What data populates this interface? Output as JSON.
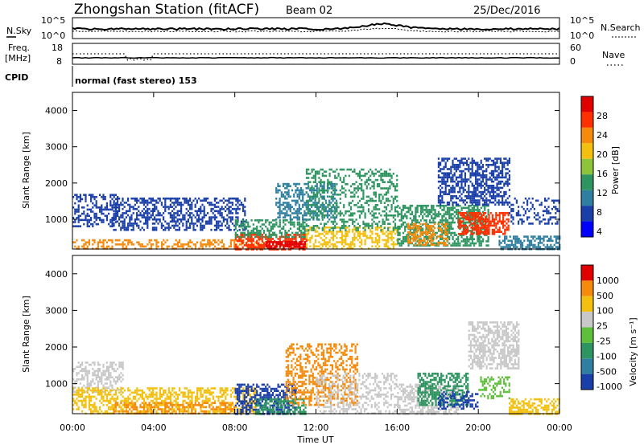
{
  "header": {
    "station": "Zhongshan Station (fitACF)",
    "beam": "Beam 02",
    "date": "25/Dec/2016"
  },
  "top_panels": {
    "nsky_label": "N.Sky",
    "nsearch_label": "N.Search",
    "freq_label_line1": "Freq.",
    "freq_label_line2": "[MHz]",
    "nave_label": "Nave",
    "cpid_label": "CPID",
    "noise_ticks_left": [
      "10^5",
      "10^0"
    ],
    "noise_ticks_right": [
      "10^5",
      "10^0"
    ],
    "freq_ticks": [
      "18",
      "8"
    ],
    "nave_ticks": [
      "60",
      "0"
    ],
    "cpid_text": "normal (fast stereo) 153"
  },
  "chart_data": [
    {
      "type": "heatmap",
      "name": "power",
      "ylabel": "Slant Range [km]",
      "xlabel": "",
      "xlim": [
        0,
        24
      ],
      "ylim": [
        180,
        4500
      ],
      "yticks": [
        "4000",
        "3000",
        "2000",
        "1000"
      ],
      "colorbar_label": "Power [dB]",
      "colorbar_ticks": [
        "28",
        "24",
        "20",
        "16",
        "12",
        "8",
        "4"
      ],
      "colors": [
        "#0000ff",
        "#1a3fa8",
        "#2f7fa0",
        "#2e9560",
        "#8cc43a",
        "#f3c00f",
        "#f58a0c",
        "#ff3000",
        "#e00000"
      ],
      "blobs": [
        {
          "t0": 0.0,
          "t1": 2.2,
          "r0": 800,
          "r1": 1700,
          "c": 1,
          "d": 0.45
        },
        {
          "t0": 0.0,
          "t1": 9.5,
          "r0": 180,
          "r1": 450,
          "c": 6,
          "d": 0.45
        },
        {
          "t0": 2.0,
          "t1": 8.5,
          "r0": 700,
          "r1": 1600,
          "c": 1,
          "d": 0.5
        },
        {
          "t0": 8.0,
          "t1": 11.5,
          "r0": 180,
          "r1": 600,
          "c": 7,
          "d": 0.7
        },
        {
          "t0": 8.0,
          "t1": 11.5,
          "r0": 500,
          "r1": 1000,
          "c": 3,
          "d": 0.55
        },
        {
          "t0": 9.5,
          "t1": 11.5,
          "r0": 180,
          "r1": 400,
          "c": 8,
          "d": 0.7
        },
        {
          "t0": 10.0,
          "t1": 13.0,
          "r0": 1000,
          "r1": 2000,
          "c": 2,
          "d": 0.5
        },
        {
          "t0": 11.5,
          "t1": 16.0,
          "r0": 180,
          "r1": 800,
          "c": 5,
          "d": 0.45
        },
        {
          "t0": 11.5,
          "t1": 16.0,
          "r0": 700,
          "r1": 2400,
          "c": 3,
          "d": 0.35
        },
        {
          "t0": 16.0,
          "t1": 20.5,
          "r0": 300,
          "r1": 1400,
          "c": 3,
          "d": 0.6
        },
        {
          "t0": 16.5,
          "t1": 18.5,
          "r0": 300,
          "r1": 900,
          "c": 6,
          "d": 0.45
        },
        {
          "t0": 19.0,
          "t1": 21.5,
          "r0": 600,
          "r1": 1200,
          "c": 7,
          "d": 0.65
        },
        {
          "t0": 18.0,
          "t1": 21.5,
          "r0": 1400,
          "r1": 2700,
          "c": 1,
          "d": 0.6
        },
        {
          "t0": 21.0,
          "t1": 24.0,
          "r0": 180,
          "r1": 550,
          "c": 2,
          "d": 0.55
        },
        {
          "t0": 21.5,
          "t1": 24.0,
          "r0": 900,
          "r1": 1600,
          "c": 1,
          "d": 0.3
        }
      ]
    },
    {
      "type": "heatmap",
      "name": "velocity",
      "ylabel": "Slant Range [km]",
      "xlabel": "Time UT",
      "xlim": [
        0,
        24
      ],
      "ylim": [
        180,
        4500
      ],
      "xticks": [
        "00:00",
        "04:00",
        "08:00",
        "12:00",
        "16:00",
        "20:00",
        "00:00"
      ],
      "yticks": [
        "4000",
        "3000",
        "2000",
        "1000"
      ],
      "colorbar_label": "Velocity [m s⁻¹]",
      "colorbar_ticks": [
        "1000",
        "500",
        "100",
        "25",
        "-25",
        "-100",
        "-500",
        "-1000"
      ],
      "colors": [
        "#1a3fa8",
        "#2f7fa0",
        "#2e9560",
        "#5fbf3a",
        "#c8c8c8",
        "#f3c00f",
        "#f58a0c",
        "#e00000"
      ],
      "blobs": [
        {
          "t0": 0.0,
          "t1": 2.5,
          "r0": 800,
          "r1": 1600,
          "c": 4,
          "d": 0.5
        },
        {
          "t0": 0.0,
          "t1": 9.0,
          "r0": 180,
          "r1": 900,
          "c": 5,
          "d": 0.5
        },
        {
          "t0": 2.0,
          "t1": 8.0,
          "r0": 180,
          "r1": 500,
          "c": 6,
          "d": 0.45
        },
        {
          "t0": 8.0,
          "t1": 11.0,
          "r0": 180,
          "r1": 1000,
          "c": 0,
          "d": 0.55
        },
        {
          "t0": 9.0,
          "t1": 11.5,
          "r0": 180,
          "r1": 600,
          "c": 2,
          "d": 0.55
        },
        {
          "t0": 10.5,
          "t1": 14.0,
          "r0": 400,
          "r1": 2100,
          "c": 6,
          "d": 0.45
        },
        {
          "t0": 12.0,
          "t1": 16.0,
          "r0": 200,
          "r1": 1300,
          "c": 4,
          "d": 0.35
        },
        {
          "t0": 16.0,
          "t1": 19.0,
          "r0": 180,
          "r1": 1000,
          "c": 4,
          "d": 0.55
        },
        {
          "t0": 17.0,
          "t1": 19.5,
          "r0": 400,
          "r1": 1300,
          "c": 2,
          "d": 0.55
        },
        {
          "t0": 18.0,
          "t1": 20.0,
          "r0": 300,
          "r1": 800,
          "c": 0,
          "d": 0.4
        },
        {
          "t0": 19.5,
          "t1": 22.0,
          "r0": 1400,
          "r1": 2700,
          "c": 4,
          "d": 0.6
        },
        {
          "t0": 20.0,
          "t1": 21.5,
          "r0": 600,
          "r1": 1200,
          "c": 3,
          "d": 0.4
        },
        {
          "t0": 21.5,
          "t1": 24.0,
          "r0": 180,
          "r1": 600,
          "c": 5,
          "d": 0.55
        }
      ]
    }
  ]
}
